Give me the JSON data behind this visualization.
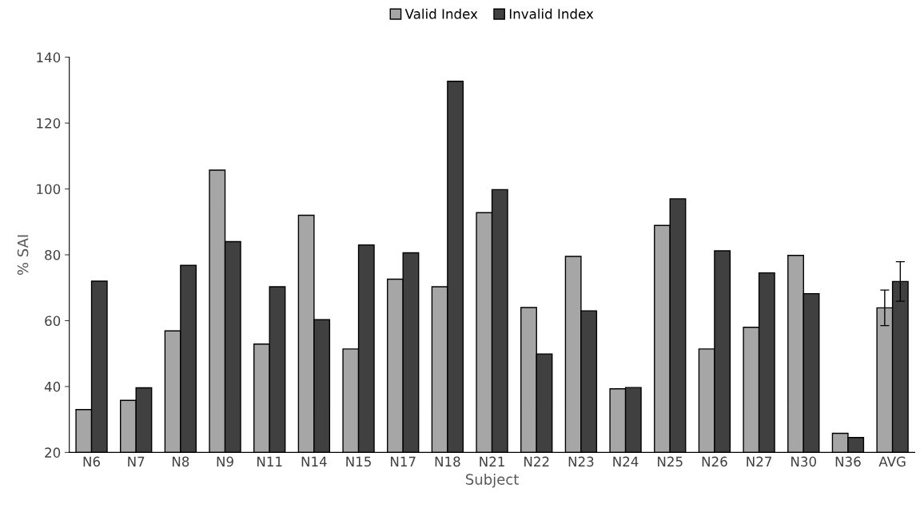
{
  "chart_data": {
    "type": "bar",
    "xlabel": "Subject",
    "ylabel": "% SAI",
    "categories": [
      "N6",
      "N7",
      "N8",
      "N9",
      "N11",
      "N14",
      "N15",
      "N17",
      "N18",
      "N21",
      "N22",
      "N23",
      "N24",
      "N25",
      "N26",
      "N27",
      "N30",
      "N36",
      "AVG"
    ],
    "series": [
      {
        "name": "Valid Index",
        "color": "#a6a6a6",
        "values": [
          33,
          35.8,
          56.9,
          105.7,
          52.9,
          92,
          51.4,
          72.6,
          70.3,
          92.8,
          64,
          79.5,
          39.3,
          88.9,
          51.4,
          58,
          79.8,
          25.8,
          63.9
        ],
        "errors": [
          null,
          null,
          null,
          null,
          null,
          null,
          null,
          null,
          null,
          null,
          null,
          null,
          null,
          null,
          null,
          null,
          null,
          null,
          5.4
        ]
      },
      {
        "name": "Invalid Index",
        "color": "#404040",
        "values": [
          72,
          39.6,
          76.8,
          84,
          70.3,
          60.3,
          83,
          80.6,
          132.7,
          99.8,
          49.9,
          63,
          39.7,
          97,
          81.2,
          74.5,
          68.2,
          24.5,
          71.9
        ],
        "errors": [
          null,
          null,
          null,
          null,
          null,
          null,
          null,
          null,
          null,
          null,
          null,
          null,
          null,
          null,
          null,
          null,
          null,
          null,
          6
        ]
      }
    ],
    "ylim": [
      20,
      140
    ],
    "yticks": [
      20,
      40,
      60,
      80,
      100,
      120,
      140
    ],
    "grid": false,
    "legend": "top"
  }
}
